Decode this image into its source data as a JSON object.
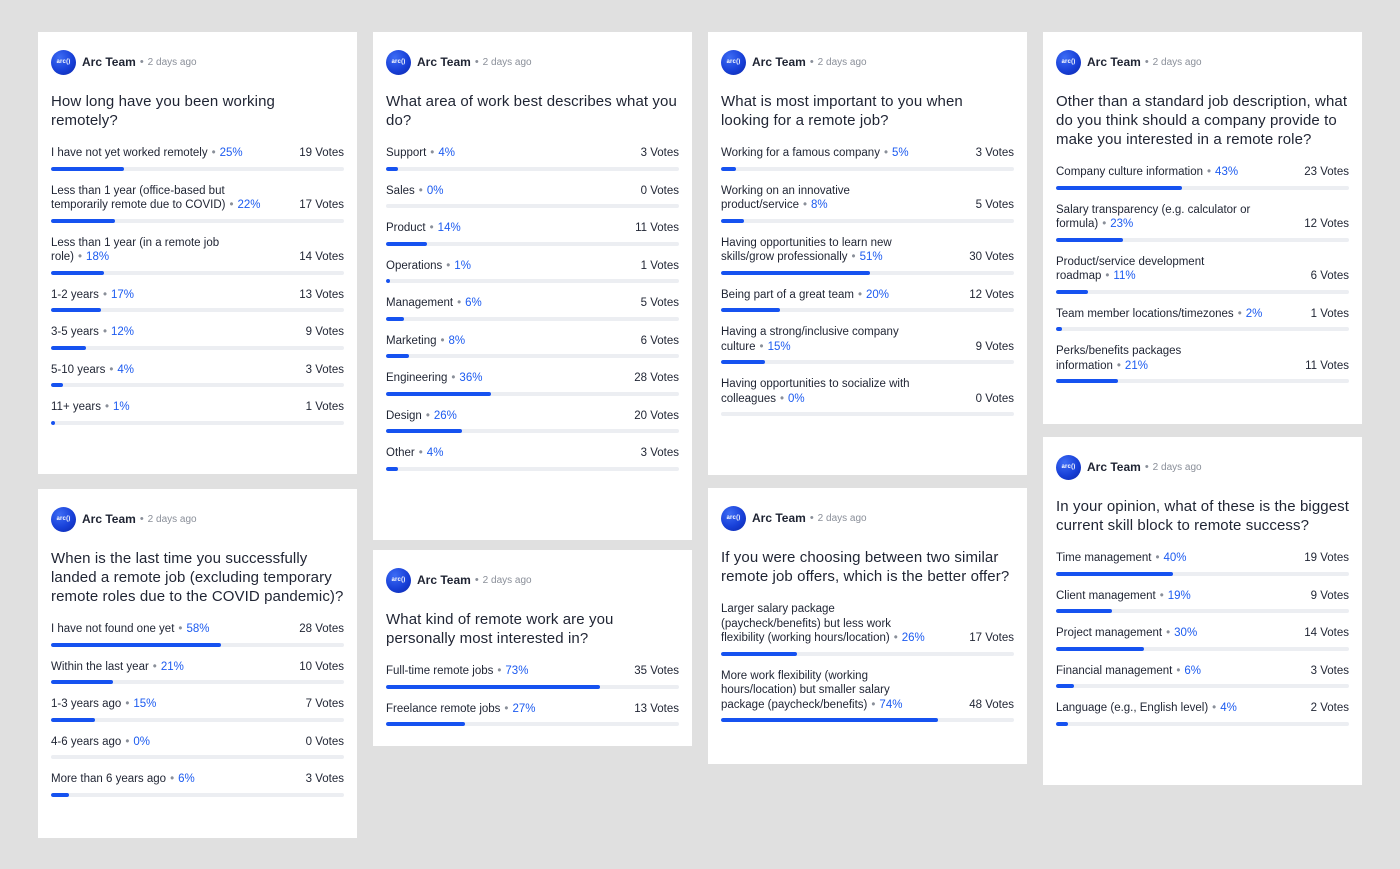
{
  "cards": [
    {
      "author": "Arc Team",
      "time": "2 days ago",
      "avatar_text": "arc()",
      "question": "How long have you been working remotely?",
      "options": [
        {
          "label": "I have not yet worked remotely",
          "pct": "25%",
          "votes": "19 Votes",
          "fill": 0.25
        },
        {
          "label": "Less than 1 year (office-based but temporarily remote due to COVID)",
          "pct": "22%",
          "votes": "17 Votes",
          "fill": 0.22
        },
        {
          "label": "Less than 1 year (in a remote job role)",
          "pct": "18%",
          "votes": "14 Votes",
          "fill": 0.18
        },
        {
          "label": "1-2 years",
          "pct": "17%",
          "votes": "13 Votes",
          "fill": 0.17
        },
        {
          "label": "3-5 years",
          "pct": "12%",
          "votes": "9 Votes",
          "fill": 0.12
        },
        {
          "label": "5-10 years",
          "pct": "4%",
          "votes": "3 Votes",
          "fill": 0.04
        },
        {
          "label": "11+ years",
          "pct": "1%",
          "votes": "1 Votes",
          "fill": 0.01
        }
      ]
    },
    {
      "author": "Arc Team",
      "time": "2 days ago",
      "avatar_text": "arc()",
      "question": "When is the last time you successfully landed a remote job (excluding temporary remote roles due to the COVID pandemic)?",
      "options": [
        {
          "label": "I have not found one yet",
          "pct": "58%",
          "votes": "28 Votes",
          "fill": 0.58
        },
        {
          "label": "Within the last year",
          "pct": "21%",
          "votes": "10 Votes",
          "fill": 0.21
        },
        {
          "label": "1-3 years ago",
          "pct": "15%",
          "votes": "7 Votes",
          "fill": 0.15
        },
        {
          "label": "4-6 years ago",
          "pct": "0%",
          "votes": "0 Votes",
          "fill": 0.0
        },
        {
          "label": "More than 6 years ago",
          "pct": "6%",
          "votes": "3 Votes",
          "fill": 0.06
        }
      ]
    },
    {
      "author": "Arc Team",
      "time": "2 days ago",
      "avatar_text": "arc()",
      "question": "What area of work best describes what you do?",
      "options": [
        {
          "label": "Support",
          "pct": "4%",
          "votes": "3 Votes",
          "fill": 0.04
        },
        {
          "label": "Sales",
          "pct": "0%",
          "votes": "0 Votes",
          "fill": 0.0
        },
        {
          "label": "Product",
          "pct": "14%",
          "votes": "11 Votes",
          "fill": 0.14
        },
        {
          "label": "Operations",
          "pct": "1%",
          "votes": "1 Votes",
          "fill": 0.01
        },
        {
          "label": "Management",
          "pct": "6%",
          "votes": "5 Votes",
          "fill": 0.06
        },
        {
          "label": "Marketing",
          "pct": "8%",
          "votes": "6 Votes",
          "fill": 0.08
        },
        {
          "label": "Engineering",
          "pct": "36%",
          "votes": "28 Votes",
          "fill": 0.36
        },
        {
          "label": "Design",
          "pct": "26%",
          "votes": "20 Votes",
          "fill": 0.26
        },
        {
          "label": "Other",
          "pct": "4%",
          "votes": "3 Votes",
          "fill": 0.04
        }
      ]
    },
    {
      "author": "Arc Team",
      "time": "2 days ago",
      "avatar_text": "arc()",
      "question": "What kind of remote work are you personally most interested in?",
      "options": [
        {
          "label": "Full-time remote jobs",
          "pct": "73%",
          "votes": "35 Votes",
          "fill": 0.73
        },
        {
          "label": "Freelance remote jobs",
          "pct": "27%",
          "votes": "13 Votes",
          "fill": 0.27
        }
      ]
    },
    {
      "author": "Arc Team",
      "time": "2 days ago",
      "avatar_text": "arc()",
      "question": "What is most important to you when looking for a remote job?",
      "options": [
        {
          "label": "Working for a famous company",
          "pct": "5%",
          "votes": "3 Votes",
          "fill": 0.05
        },
        {
          "label": "Working on an innovative product/service",
          "pct": "8%",
          "votes": "5 Votes",
          "fill": 0.08
        },
        {
          "label": "Having opportunities to learn new skills/grow professionally",
          "pct": "51%",
          "votes": "30 Votes",
          "fill": 0.51
        },
        {
          "label": "Being part of a great team",
          "pct": "20%",
          "votes": "12 Votes",
          "fill": 0.2
        },
        {
          "label": "Having a strong/inclusive company culture",
          "pct": "15%",
          "votes": "9 Votes",
          "fill": 0.15
        },
        {
          "label": "Having opportunities to socialize with colleagues",
          "pct": "0%",
          "votes": "0 Votes",
          "fill": 0.0
        }
      ]
    },
    {
      "author": "Arc Team",
      "time": "2 days ago",
      "avatar_text": "arc()",
      "question": "If you were choosing between two similar remote job offers, which is the better offer?",
      "options": [
        {
          "label": "Larger salary package (paycheck/benefits) but less work flexibility (working hours/location)",
          "pct": "26%",
          "votes": "17 Votes",
          "fill": 0.26
        },
        {
          "label": "More work flexibility (working hours/location) but smaller salary package (paycheck/benefits)",
          "pct": "74%",
          "votes": "48 Votes",
          "fill": 0.74
        }
      ]
    },
    {
      "author": "Arc Team",
      "time": "2 days ago",
      "avatar_text": "arc()",
      "question": "Other than a standard job description, what do you think should a company provide to make you interested in a remote role?",
      "options": [
        {
          "label": "Company culture information",
          "pct": "43%",
          "votes": "23 Votes",
          "fill": 0.43
        },
        {
          "label": "Salary transparency (e.g. calculator or formula)",
          "pct": "23%",
          "votes": "12 Votes",
          "fill": 0.23
        },
        {
          "label": "Product/service development roadmap",
          "pct": "11%",
          "votes": "6 Votes",
          "fill": 0.11
        },
        {
          "label": "Team member locations/timezones",
          "pct": "2%",
          "votes": "1 Votes",
          "fill": 0.02
        },
        {
          "label": "Perks/benefits packages information",
          "pct": "21%",
          "votes": "11 Votes",
          "fill": 0.21
        }
      ]
    },
    {
      "author": "Arc Team",
      "time": "2 days ago",
      "avatar_text": "arc()",
      "question": "In your opinion, what of these is the biggest current skill block to remote success?",
      "options": [
        {
          "label": "Time management",
          "pct": "40%",
          "votes": "19 Votes",
          "fill": 0.4
        },
        {
          "label": "Client management",
          "pct": "19%",
          "votes": "9 Votes",
          "fill": 0.19
        },
        {
          "label": "Project management",
          "pct": "30%",
          "votes": "14 Votes",
          "fill": 0.3
        },
        {
          "label": "Financial management",
          "pct": "6%",
          "votes": "3 Votes",
          "fill": 0.06
        },
        {
          "label": "Language (e.g., English level)",
          "pct": "4%",
          "votes": "2 Votes",
          "fill": 0.04
        }
      ]
    }
  ],
  "colors": {
    "accent": "#1652f0",
    "percent": "#1c5bf0",
    "track": "#eceef2",
    "background": "#e0e0e0",
    "card": "#ffffff"
  },
  "icons": {
    "avatar": "arc-logo-icon"
  }
}
